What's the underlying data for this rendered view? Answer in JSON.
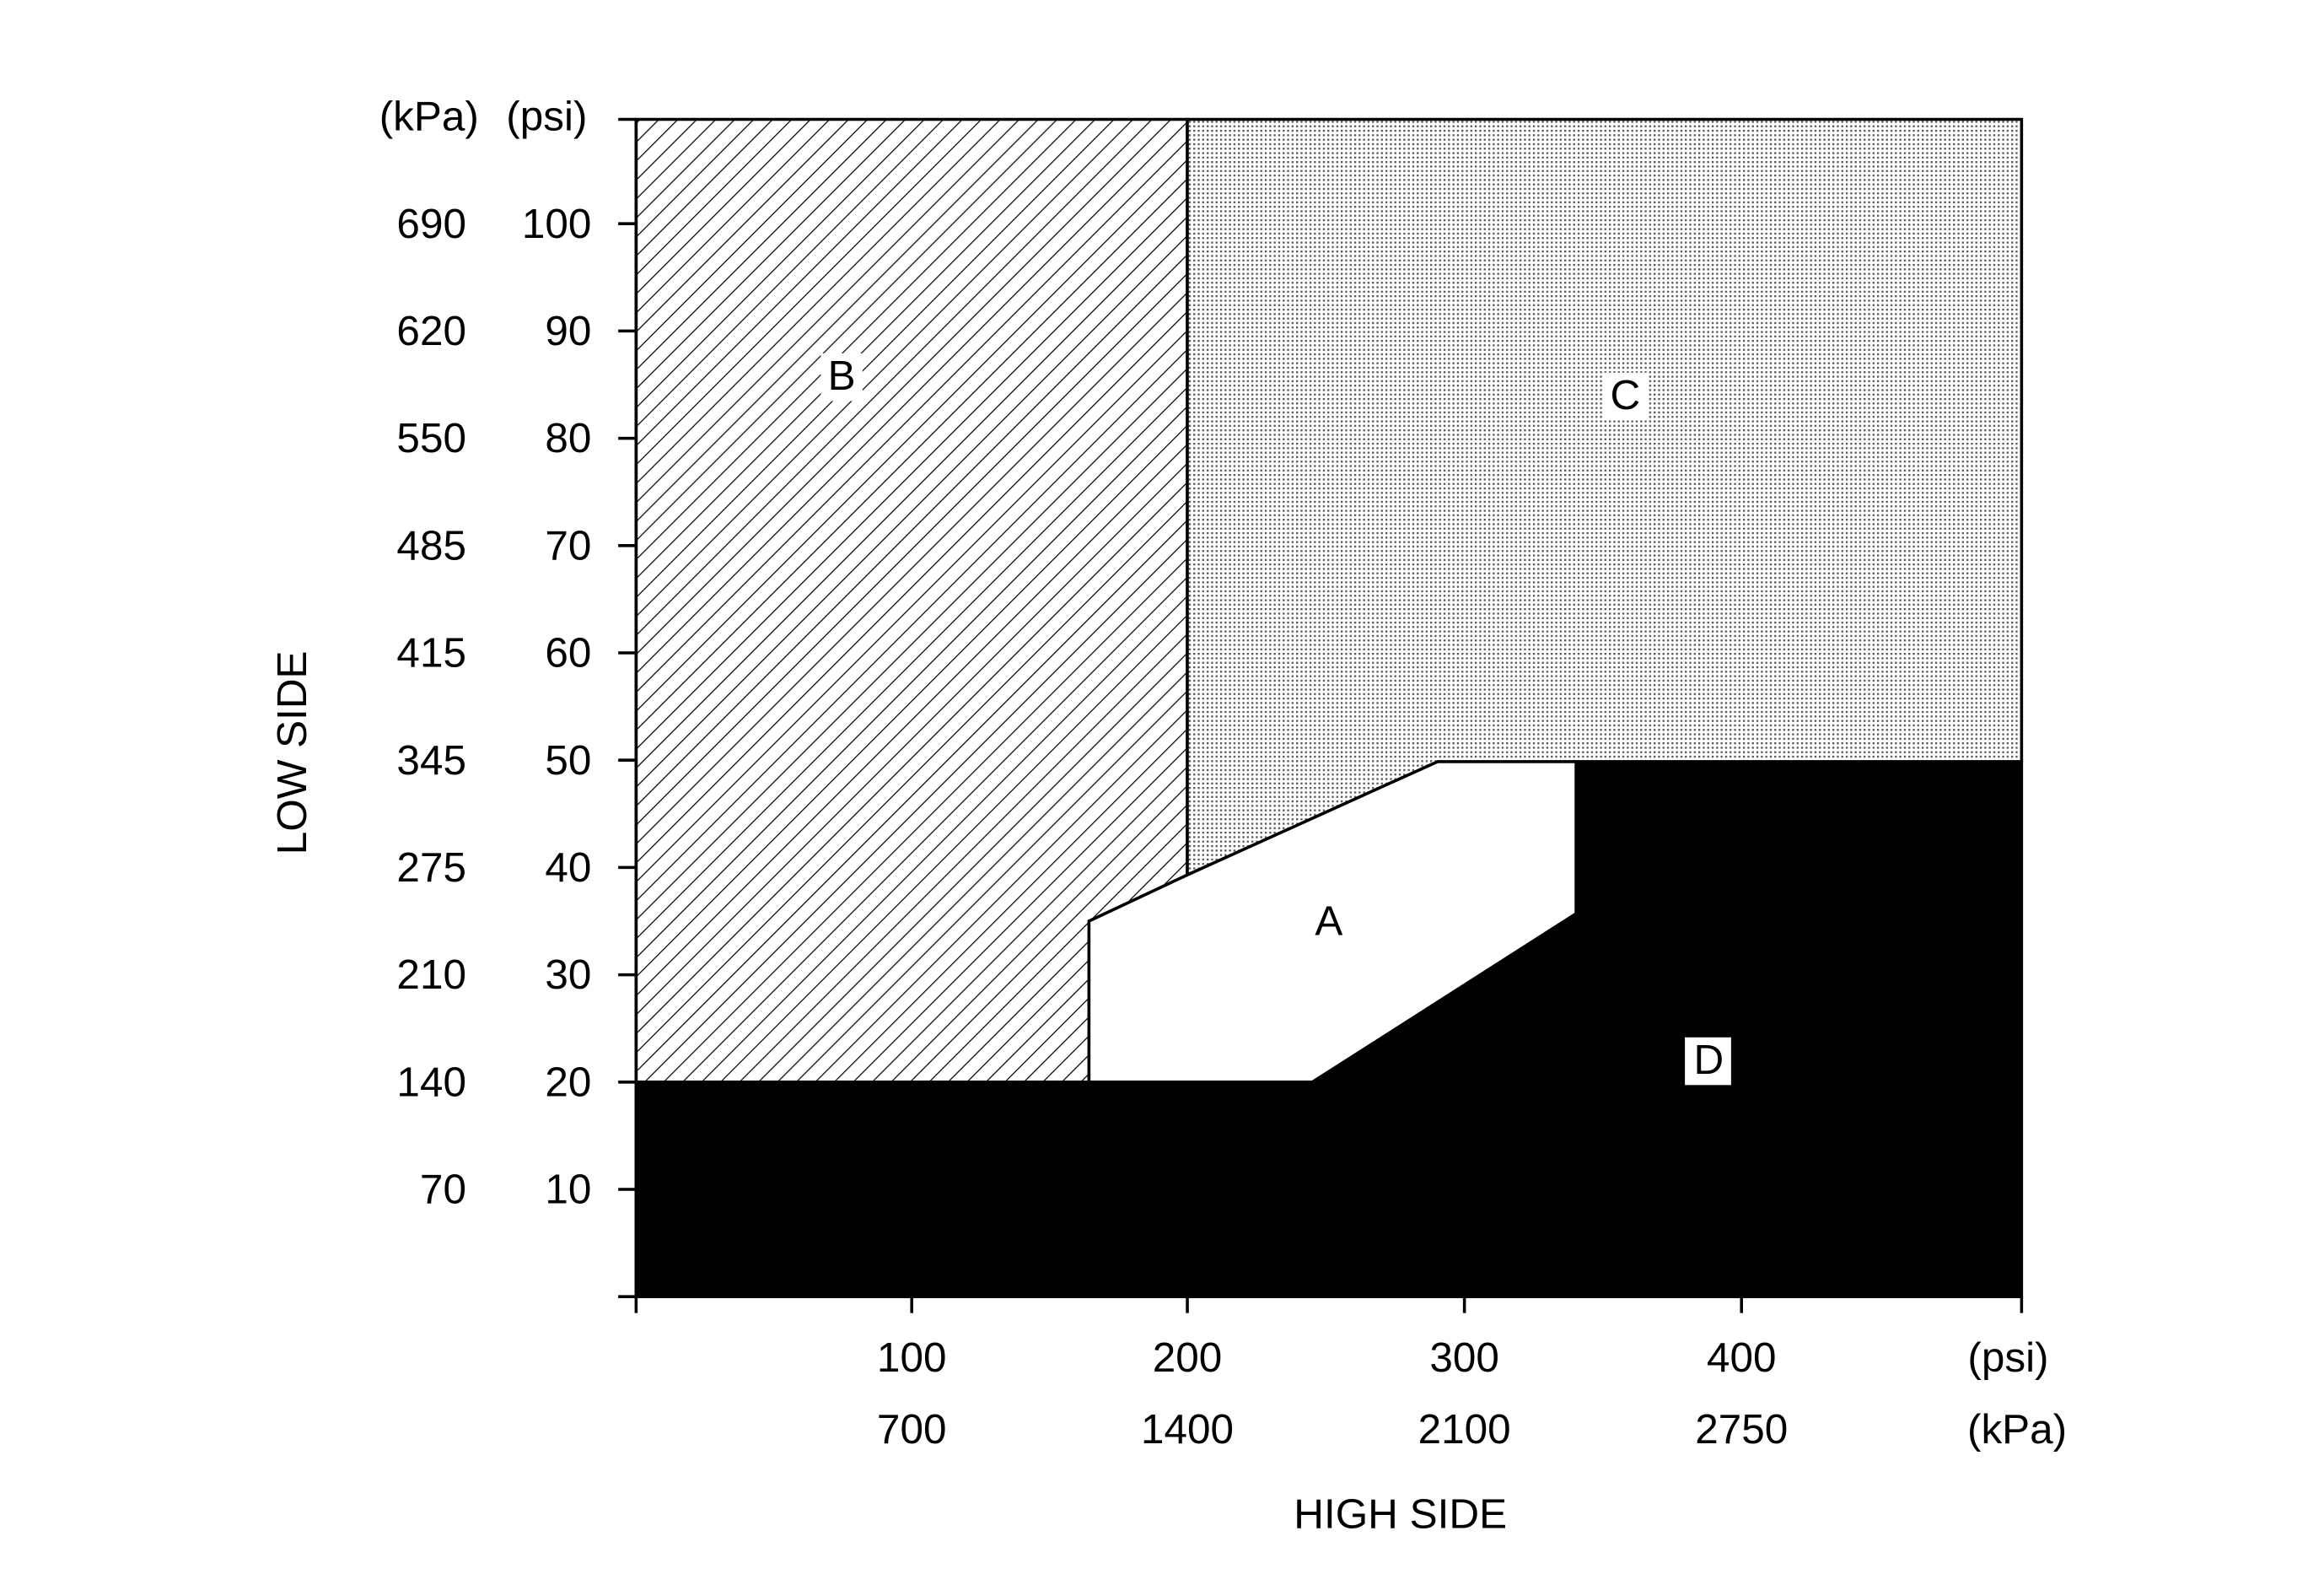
{
  "y_axis": {
    "title": "LOW SIDE",
    "kpa_unit": "(kPa)",
    "psi_unit": "(psi)",
    "kpa_labels": [
      "690",
      "620",
      "550",
      "485",
      "415",
      "345",
      "275",
      "210",
      "140",
      "70"
    ],
    "psi_labels": [
      "100",
      "90",
      "80",
      "70",
      "60",
      "50",
      "40",
      "30",
      "20",
      "10"
    ]
  },
  "x_axis": {
    "title": "HIGH SIDE",
    "psi_unit": "(psi)",
    "kpa_unit": "(kPa)",
    "psi_labels": [
      "100",
      "200",
      "300",
      "400"
    ],
    "kpa_labels": [
      "700",
      "1400",
      "2100",
      "2750"
    ]
  },
  "regions": {
    "a": "A",
    "b": "B",
    "c": "C",
    "d": "D"
  }
}
